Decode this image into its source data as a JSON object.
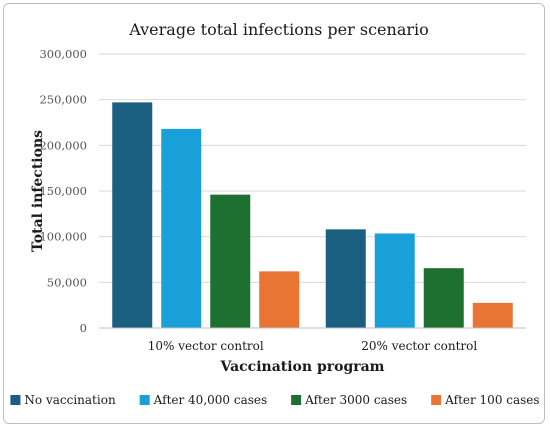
{
  "chart_data": {
    "type": "bar",
    "title": "Average total infections per scenario",
    "xlabel": "Vaccination program",
    "ylabel": "Total infections",
    "categories": [
      "10% vector control",
      "20% vector control"
    ],
    "ylim": [
      0,
      300000
    ],
    "yticks": [
      0,
      50000,
      100000,
      150000,
      200000,
      250000,
      300000
    ],
    "ytick_labels": [
      "0",
      "50,000",
      "100,000",
      "150,000",
      "200,000",
      "250,000",
      "300,000"
    ],
    "grid": true,
    "legend_position": "bottom",
    "series": [
      {
        "name": "No vaccination",
        "color": "#1a5e80",
        "values": [
          247000,
          108000
        ]
      },
      {
        "name": "After 40,000 cases",
        "color": "#1aa0d9",
        "values": [
          218000,
          103500
        ]
      },
      {
        "name": "After 3000 cases",
        "color": "#1e7030",
        "values": [
          146000,
          65500
        ]
      },
      {
        "name": "After 100 cases",
        "color": "#ea7434",
        "values": [
          62000,
          27500
        ]
      }
    ]
  }
}
